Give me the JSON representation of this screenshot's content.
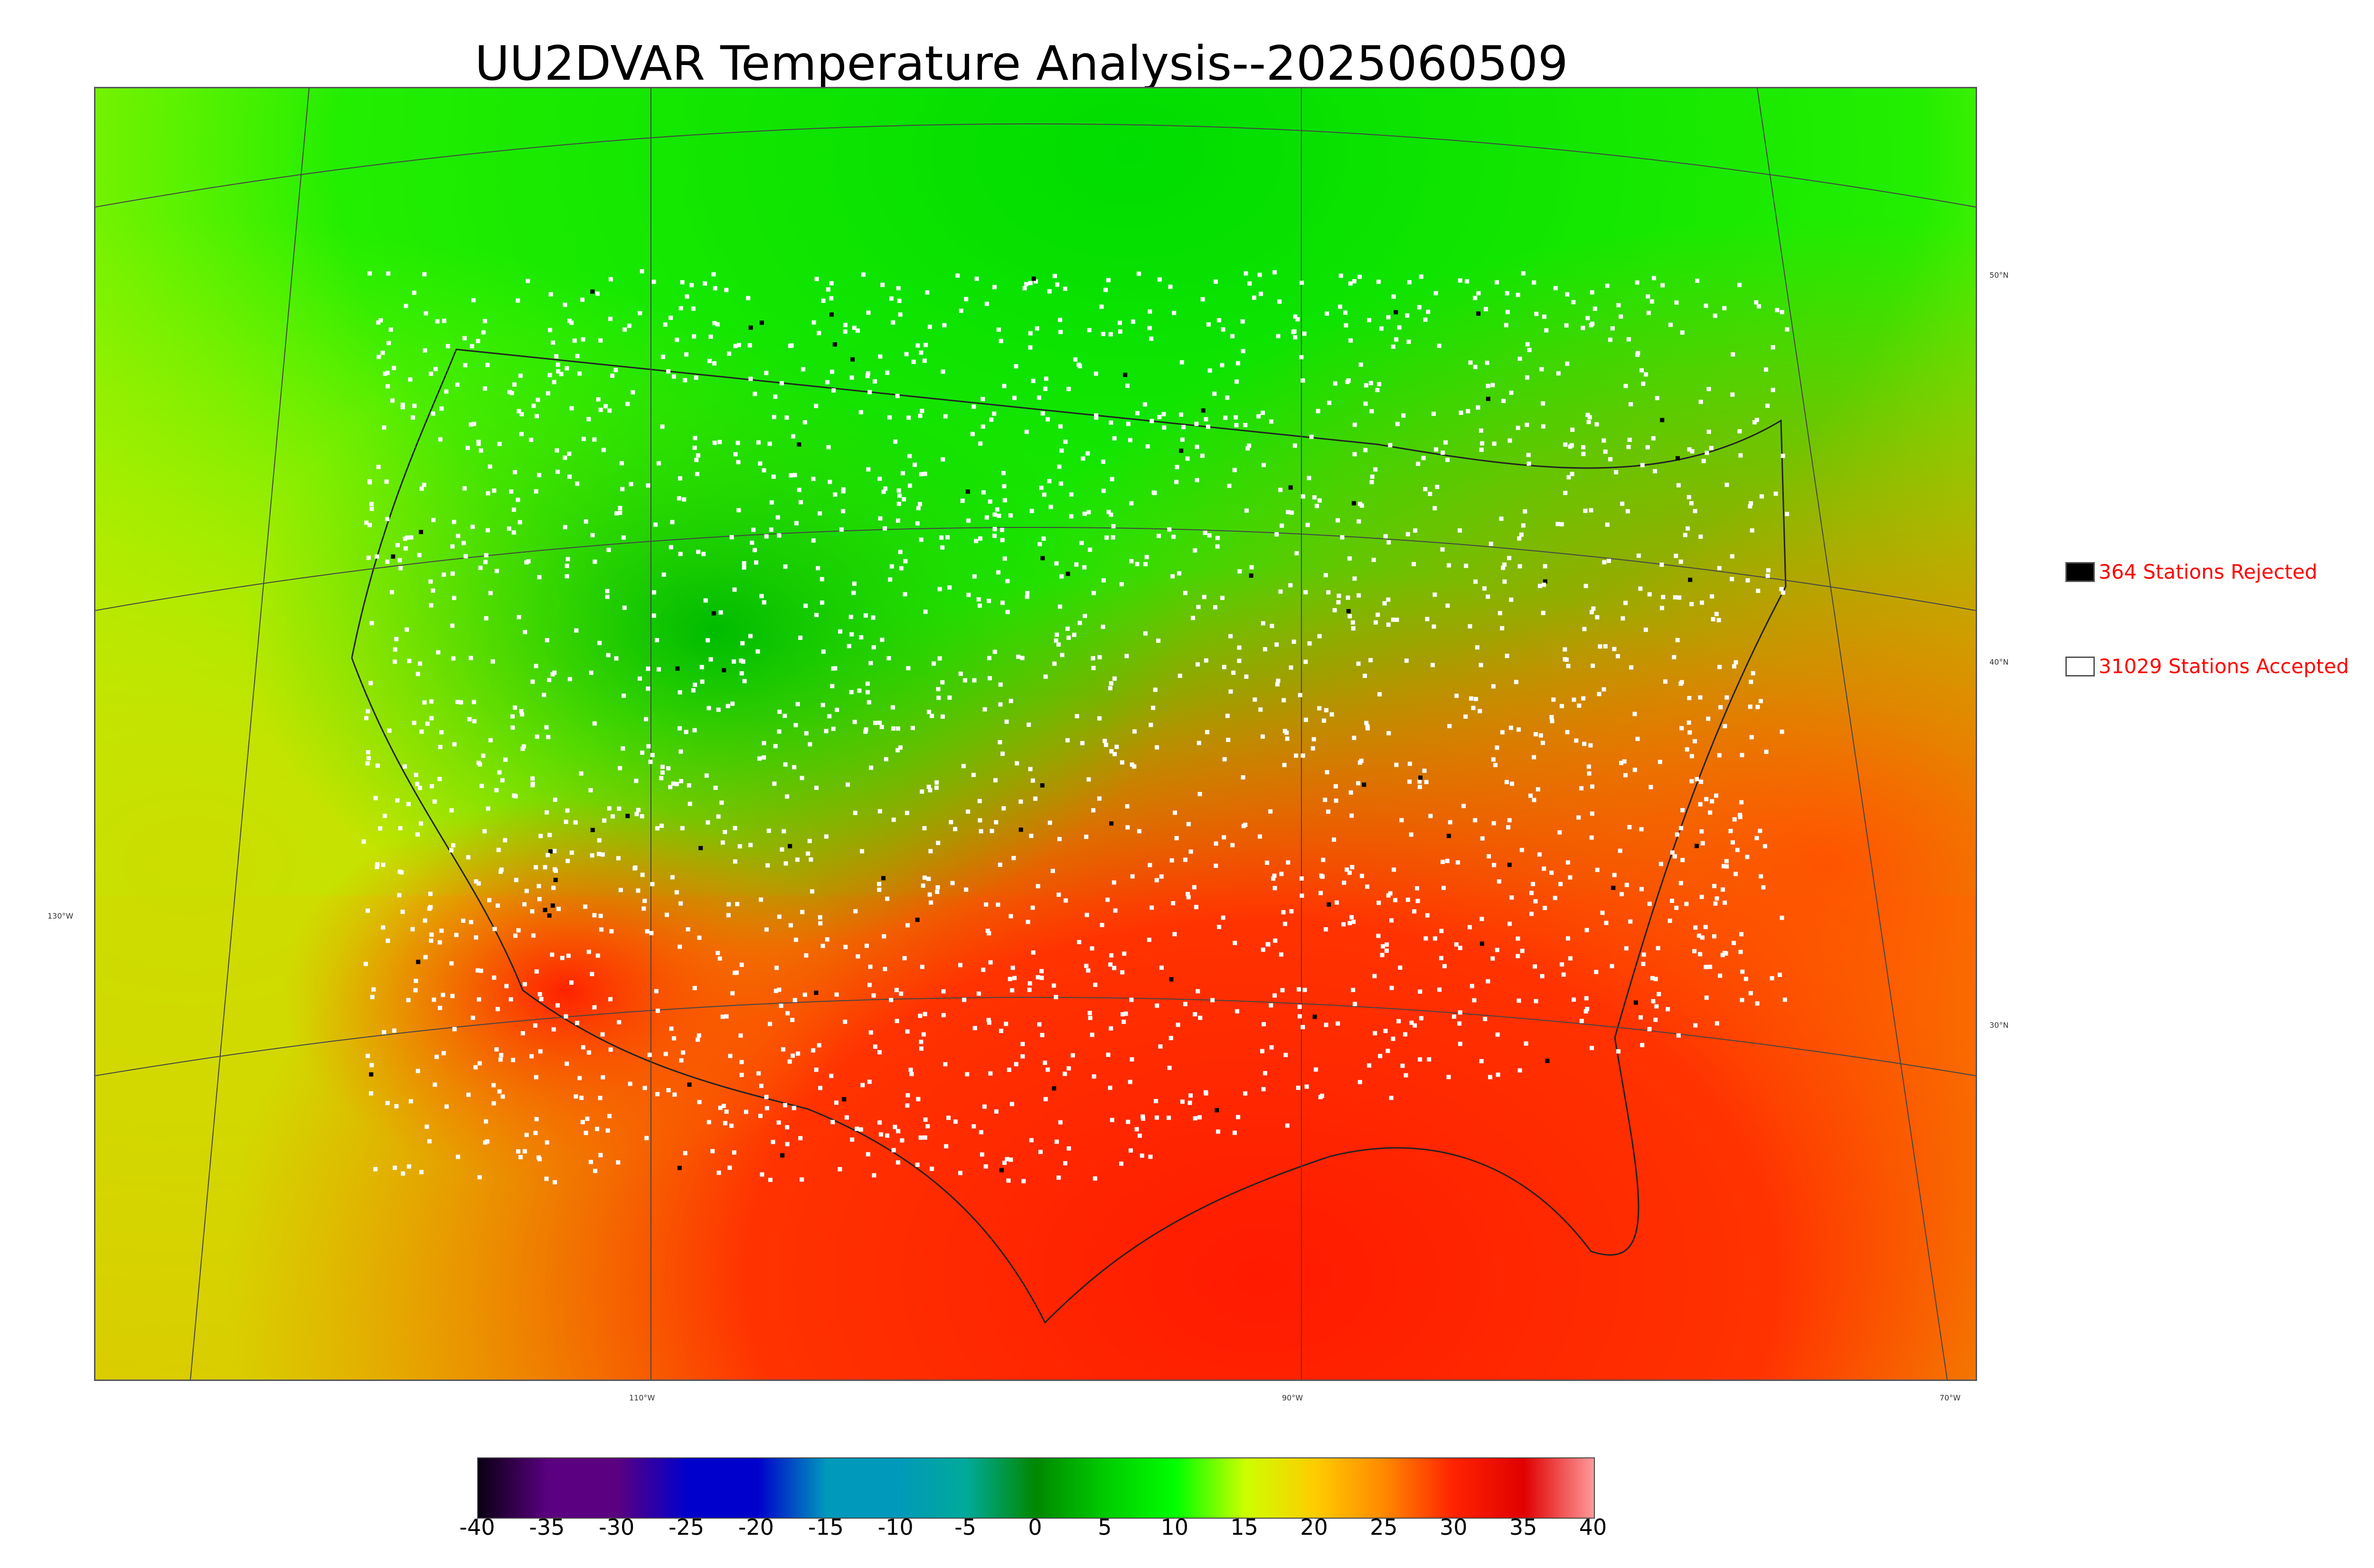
{
  "title": "UU2DVAR Temperature Analysis--2025060509",
  "map": {
    "lon_labels": [
      "130°W",
      "110°W",
      "90°W",
      "70°W"
    ],
    "lat_labels": [
      "50°N",
      "40°N",
      "30°N"
    ]
  },
  "legend": {
    "rejected": {
      "label": "364 Stations Rejected",
      "color": "#000000"
    },
    "accepted": {
      "label": "31029 Stations Accepted",
      "color": "#ffffff"
    }
  },
  "colorbar": {
    "ticks": [
      "-40",
      "-35",
      "-30",
      "-25",
      "-20",
      "-15",
      "-10",
      "-5",
      "0",
      "5",
      "10",
      "15",
      "20",
      "25",
      "30",
      "35",
      "40"
    ],
    "colors": [
      "#0b0014",
      "#5a0080",
      "#5a0080",
      "#0000cc",
      "#0000cc",
      "#0099bb",
      "#0099bb",
      "#00aa99",
      "#008800",
      "#00cc00",
      "#00ff00",
      "#ccff00",
      "#ffcc00",
      "#ff8800",
      "#ff2200",
      "#e00000",
      "#ff9999"
    ]
  }
}
